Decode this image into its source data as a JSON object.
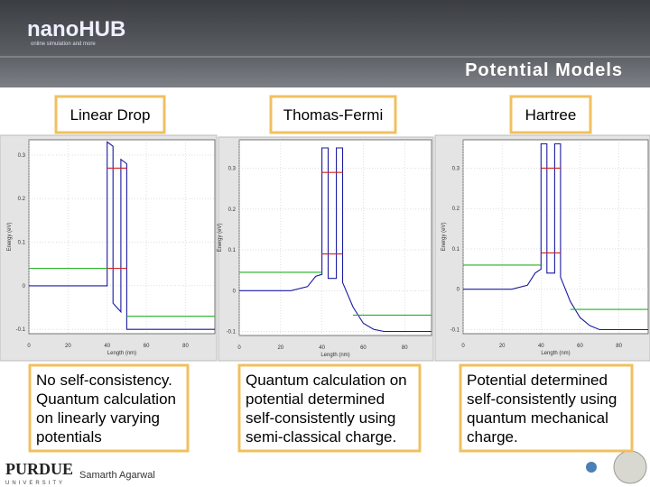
{
  "header": {
    "logo": "nanoHUB",
    "tagline": "online simulation and more",
    "title": "Potential Models"
  },
  "panels": [
    {
      "label": "Linear Drop",
      "caption": [
        "No self-consistency.",
        "Quantum calculation",
        "on linearly varying",
        "potentials"
      ],
      "plot": {
        "x_label": "Length (nm)",
        "y_label": "Energy (eV)",
        "xlim": [
          0,
          95
        ],
        "ylim": [
          -0.11,
          0.335
        ],
        "xticks": [
          0,
          20,
          40,
          60,
          80
        ],
        "yticks": [
          0.3,
          0.2,
          0.1,
          0,
          -0.1
        ],
        "series": [
          {
            "color": "#1a1aa0",
            "x": [
              0,
              40,
              40,
              43,
              43,
              47,
              47,
              50,
              50,
              95
            ],
            "values": [
              0,
              0,
              0.33,
              0.32,
              -0.04,
              -0.06,
              0.29,
              0.28,
              -0.1,
              -0.1
            ]
          },
          {
            "color": "#d42020",
            "x": [
              40,
              50,
              null,
              40,
              50
            ],
            "values": [
              0.27,
              0.27,
              null,
              0.04,
              0.04
            ]
          },
          {
            "color": "#22b022",
            "x": [
              0,
              40,
              null,
              50,
              95
            ],
            "values": [
              0.04,
              0.04,
              null,
              -0.07,
              -0.07
            ]
          }
        ]
      }
    },
    {
      "label": "Thomas-Fermi",
      "caption": [
        "Quantum calculation on",
        "potential determined",
        "self-consistently using",
        "semi-classical charge."
      ],
      "plot": {
        "x_label": "Length (nm)",
        "y_label": "Energy (eV)",
        "xlim": [
          0,
          93
        ],
        "ylim": [
          -0.11,
          0.37
        ],
        "xticks": [
          0,
          20,
          40,
          60,
          80
        ],
        "yticks": [
          0.3,
          0.2,
          0.1,
          0,
          -0.1
        ],
        "series": [
          {
            "color": "#1a1aa0",
            "x": [
              0,
              25,
              33,
              37,
              40,
              40,
              43,
              43,
              47,
              47,
              50,
              50,
              55,
              60,
              65,
              70,
              93
            ],
            "values": [
              0,
              0,
              0.01,
              0.035,
              0.04,
              0.35,
              0.35,
              0.03,
              0.03,
              0.35,
              0.35,
              0.02,
              -0.04,
              -0.08,
              -0.095,
              -0.1,
              -0.1
            ]
          },
          {
            "color": "#d42020",
            "x": [
              40,
              50,
              null,
              40,
              50
            ],
            "values": [
              0.29,
              0.29,
              null,
              0.09,
              0.09
            ]
          },
          {
            "color": "#22b022",
            "x": [
              0,
              40,
              null,
              55,
              93
            ],
            "values": [
              0.045,
              0.045,
              null,
              -0.06,
              -0.06
            ]
          }
        ]
      }
    },
    {
      "label": "Hartree",
      "caption": [
        "Potential determined",
        "self-consistently using",
        "quantum mechanical",
        "charge."
      ],
      "plot": {
        "x_label": "Length (nm)",
        "y_label": "Energy (eV)",
        "xlim": [
          0,
          95
        ],
        "ylim": [
          -0.11,
          0.37
        ],
        "xticks": [
          0,
          20,
          40,
          60,
          80
        ],
        "yticks": [
          0.3,
          0.2,
          0.1,
          0,
          -0.1
        ],
        "series": [
          {
            "color": "#1a1aa0",
            "x": [
              0,
              25,
              33,
              37,
              40,
              40,
              43,
              43,
              47,
              47,
              50,
              50,
              55,
              60,
              65,
              70,
              95
            ],
            "values": [
              0,
              0,
              0.01,
              0.04,
              0.05,
              0.36,
              0.36,
              0.04,
              0.04,
              0.36,
              0.36,
              0.03,
              -0.03,
              -0.07,
              -0.09,
              -0.1,
              -0.1
            ]
          },
          {
            "color": "#d42020",
            "x": [
              40,
              50,
              null,
              40,
              50
            ],
            "values": [
              0.3,
              0.3,
              null,
              0.09,
              0.09
            ]
          },
          {
            "color": "#22b022",
            "x": [
              0,
              40,
              null,
              55,
              95
            ],
            "values": [
              0.06,
              0.06,
              null,
              -0.05,
              -0.05
            ]
          }
        ]
      }
    }
  ],
  "footer": {
    "university": "PURDUE",
    "university_sub": "UNIVERSITY",
    "author": "Samarth Agarwal"
  }
}
